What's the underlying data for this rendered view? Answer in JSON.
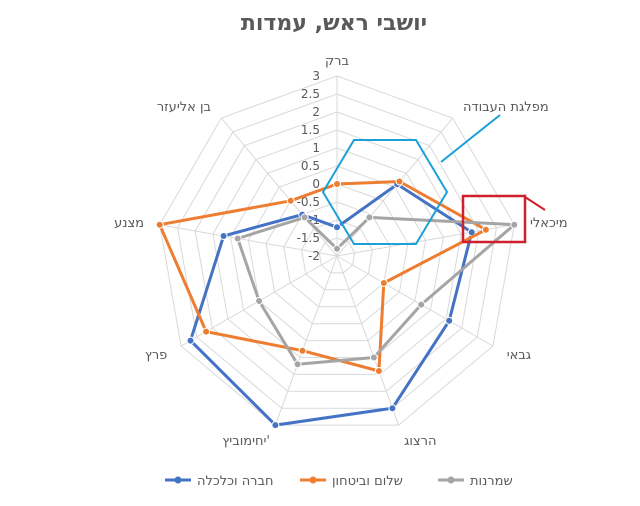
{
  "chart_data": {
    "type": "radar",
    "title": "יושבי ראש, עמדות",
    "categories": [
      "ברק",
      "מפלגת העבודה",
      "מיכאלי",
      "גבאי",
      "הרצוג",
      "יחימוביץ'",
      "פרץ",
      "מצנע",
      "בן אליעזר"
    ],
    "r_ticks": [
      "3",
      "2.5",
      "2",
      "1.5",
      "1",
      "0.5",
      "0",
      "-0.5",
      "-1",
      "-1.5",
      "-2"
    ],
    "rlim": [
      -2,
      3
    ],
    "series": [
      {
        "name": "חברה וכלכלה",
        "color": "#4472C4",
        "values": [
          -1.2,
          0.6,
          1.8,
          1.6,
          2.5,
          3.0,
          2.7,
          1.2,
          -0.5
        ]
      },
      {
        "name": "שלום וביטחון",
        "color": "#ED7D31",
        "values": [
          0.0,
          0.7,
          2.2,
          -0.5,
          1.4,
          0.8,
          2.2,
          3.0,
          0.0
        ]
      },
      {
        "name": "שמרנות",
        "color": "#A5A5A5",
        "values": [
          -1.8,
          -0.6,
          3.0,
          0.7,
          1.0,
          1.2,
          0.5,
          0.8,
          -0.6
        ]
      }
    ],
    "legend_position": "bottom",
    "grid": true
  },
  "annotations": [
    {
      "shape": "hexagon",
      "color": "#1BA1D8",
      "note": "callout"
    },
    {
      "shape": "rectangle",
      "color": "#D0202E",
      "note": "callout"
    }
  ]
}
